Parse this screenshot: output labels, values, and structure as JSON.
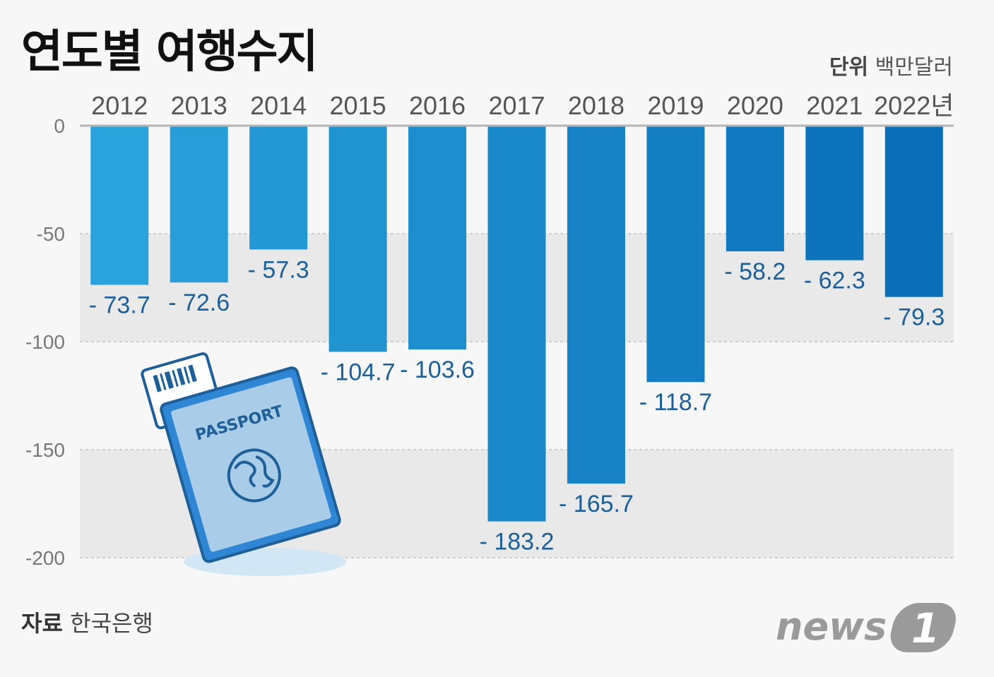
{
  "header": {
    "title": "연도별 여행수지",
    "unit_label": "단위",
    "unit_value": "백만달러"
  },
  "footer": {
    "source_label": "자료",
    "source_value": "한국은행",
    "logo_text": "news",
    "logo_number": "1"
  },
  "illustration": {
    "passport_text": "PASSPORT"
  },
  "chart_data": {
    "type": "bar",
    "title": "연도별 여행수지",
    "ylabel": "",
    "xlabel": "",
    "categories": [
      "2012",
      "2013",
      "2014",
      "2015",
      "2016",
      "2017",
      "2018",
      "2019",
      "2020",
      "2021",
      "2022년"
    ],
    "values": [
      -73.7,
      -72.6,
      -57.3,
      -104.7,
      -103.6,
      -183.2,
      -165.7,
      -118.7,
      -58.2,
      -62.3,
      -79.3
    ],
    "data_labels": [
      "- 73.7",
      "- 72.6",
      "- 57.3",
      "- 104.7",
      "- 103.6",
      "- 183.2",
      "- 165.7",
      "- 118.7",
      "- 58.2",
      "- 62.3",
      "- 79.3"
    ],
    "yticks": [
      0,
      -50,
      -100,
      -150,
      -200
    ],
    "ytick_labels": [
      "0",
      "-50",
      "-100",
      "-150",
      "-200"
    ],
    "ylim": [
      -200,
      0
    ],
    "grid": true,
    "colors": {
      "bar_start": "#2aa3dc",
      "bar_end": "#0a6eb8",
      "band": "#e9e9e9",
      "value_text": "#1c5f99"
    }
  }
}
